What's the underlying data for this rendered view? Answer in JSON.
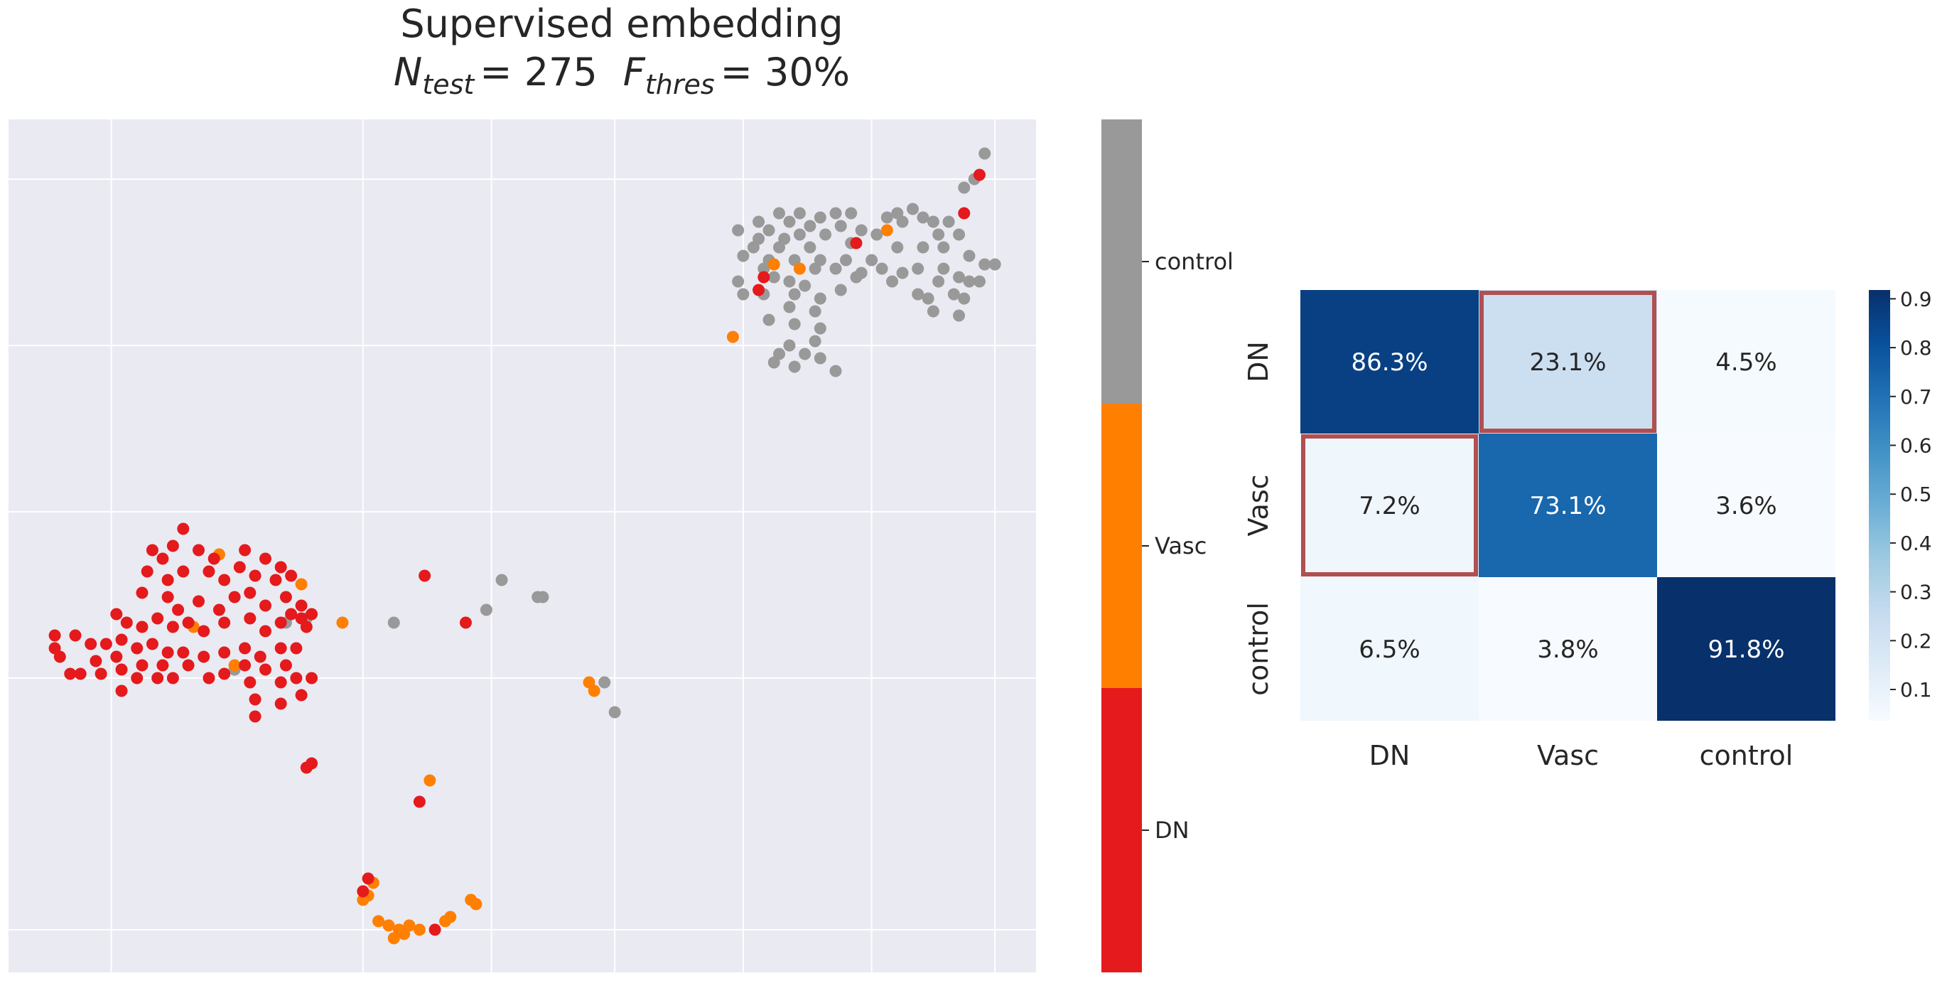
{
  "title": {
    "line1": "Supervised embedding",
    "n_symbol": "N",
    "n_sub": "test",
    "n_value": "= 275",
    "f_symbol": "F",
    "f_sub": "thres",
    "f_value": "= 30%"
  },
  "colors": {
    "DN": "#e41a1c",
    "Vasc": "#ff7f00",
    "control": "#999999",
    "plot_bg": "#eaeaf2",
    "grid": "#ffffff",
    "highlight": "#b05050"
  },
  "chart_data": [
    {
      "type": "scatter",
      "title": "Supervised embedding",
      "xlabel": "",
      "ylabel": "",
      "xlim": [
        0,
        100
      ],
      "ylim": [
        0,
        100
      ],
      "grid": true,
      "legend": "colorbar-right",
      "colorbar": {
        "labels": [
          "control",
          "Vasc",
          "DN"
        ]
      },
      "series": [
        {
          "name": "control",
          "points": [
            [
              95.0,
              96.0
            ],
            [
              94.0,
              93.0
            ],
            [
              93.0,
              92.0
            ],
            [
              75.0,
              89.0
            ],
            [
              77.0,
              89.0
            ],
            [
              79.0,
              88.5
            ],
            [
              80.5,
              89.0
            ],
            [
              82.0,
              89.0
            ],
            [
              88.0,
              89.5
            ],
            [
              86.5,
              89.0
            ],
            [
              85.5,
              88.5
            ],
            [
              89.0,
              88.5
            ],
            [
              73.0,
              88.0
            ],
            [
              76.0,
              88.0
            ],
            [
              78.0,
              87.5
            ],
            [
              81.0,
              87.5
            ],
            [
              87.0,
              88.0
            ],
            [
              90.0,
              88.0
            ],
            [
              91.5,
              88.0
            ],
            [
              71.0,
              87.0
            ],
            [
              74.0,
              87.0
            ],
            [
              83.0,
              87.0
            ],
            [
              84.5,
              86.5
            ],
            [
              90.5,
              86.5
            ],
            [
              92.5,
              86.5
            ],
            [
              73.0,
              86.0
            ],
            [
              75.5,
              86.0
            ],
            [
              77.0,
              86.5
            ],
            [
              79.5,
              86.5
            ],
            [
              72.5,
              85.0
            ],
            [
              75.0,
              85.0
            ],
            [
              78.0,
              85.0
            ],
            [
              82.0,
              85.5
            ],
            [
              86.5,
              85.0
            ],
            [
              89.0,
              85.0
            ],
            [
              91.0,
              85.0
            ],
            [
              71.5,
              84.0
            ],
            [
              74.0,
              83.5
            ],
            [
              76.5,
              83.5
            ],
            [
              79.0,
              83.5
            ],
            [
              81.5,
              83.5
            ],
            [
              84.0,
              83.5
            ],
            [
              93.5,
              84.0
            ],
            [
              95.0,
              83.0
            ],
            [
              96.0,
              83.0
            ],
            [
              73.5,
              82.5
            ],
            [
              78.5,
              82.5
            ],
            [
              80.5,
              82.5
            ],
            [
              83.0,
              82.0
            ],
            [
              85.0,
              82.5
            ],
            [
              87.0,
              82.0
            ],
            [
              88.5,
              82.5
            ],
            [
              91.0,
              82.5
            ],
            [
              92.5,
              81.5
            ],
            [
              71.0,
              81.0
            ],
            [
              74.5,
              81.5
            ],
            [
              76.0,
              81.0
            ],
            [
              77.5,
              80.5
            ],
            [
              82.5,
              81.5
            ],
            [
              86.0,
              81.0
            ],
            [
              90.5,
              81.0
            ],
            [
              93.5,
              81.0
            ],
            [
              94.5,
              81.0
            ],
            [
              71.5,
              79.5
            ],
            [
              73.5,
              79.5
            ],
            [
              76.5,
              79.5
            ],
            [
              79.0,
              79.0
            ],
            [
              81.0,
              80.0
            ],
            [
              88.5,
              79.5
            ],
            [
              89.5,
              79.0
            ],
            [
              92.0,
              79.5
            ],
            [
              93.0,
              79.0
            ],
            [
              76.0,
              78.0
            ],
            [
              90.0,
              77.5
            ],
            [
              92.5,
              77.0
            ],
            [
              74.0,
              76.5
            ],
            [
              76.5,
              76.0
            ],
            [
              78.5,
              77.5
            ],
            [
              79.0,
              75.5
            ],
            [
              78.5,
              74.0
            ],
            [
              76.0,
              73.5
            ],
            [
              75.0,
              72.5
            ],
            [
              77.5,
              72.5
            ],
            [
              79.0,
              72.0
            ],
            [
              74.5,
              71.5
            ],
            [
              76.5,
              71.0
            ],
            [
              80.5,
              70.5
            ],
            [
              27.0,
              41.0
            ],
            [
              29.0,
              41.5
            ],
            [
              22.0,
              35.5
            ],
            [
              48.0,
              46.0
            ],
            [
              46.5,
              42.5
            ],
            [
              51.5,
              44.0
            ],
            [
              52.0,
              44.0
            ],
            [
              58.0,
              34.0
            ],
            [
              59.0,
              30.5
            ],
            [
              37.5,
              41.0
            ]
          ]
        },
        {
          "name": "Vasc",
          "points": [
            [
              85.5,
              87.0
            ],
            [
              74.5,
              83.0
            ],
            [
              77.0,
              82.5
            ],
            [
              70.5,
              74.5
            ],
            [
              20.5,
              49.0
            ],
            [
              28.5,
              45.5
            ],
            [
              32.5,
              41.0
            ],
            [
              18.0,
              40.5
            ],
            [
              22.0,
              36.0
            ],
            [
              56.5,
              34.0
            ],
            [
              57.0,
              33.0
            ],
            [
              41.0,
              22.5
            ],
            [
              35.5,
              10.5
            ],
            [
              35.0,
              9.0
            ],
            [
              34.5,
              8.5
            ],
            [
              36.0,
              6.0
            ],
            [
              37.0,
              5.5
            ],
            [
              37.5,
              4.0
            ],
            [
              38.0,
              5.0
            ],
            [
              39.0,
              5.5
            ],
            [
              40.0,
              5.0
            ],
            [
              42.5,
              6.0
            ],
            [
              43.0,
              6.5
            ],
            [
              45.5,
              8.0
            ],
            [
              45.0,
              8.5
            ],
            [
              38.5,
              4.5
            ]
          ]
        },
        {
          "name": "DN",
          "points": [
            [
              94.5,
              93.5
            ],
            [
              93.0,
              89.0
            ],
            [
              82.5,
              85.5
            ],
            [
              73.5,
              81.5
            ],
            [
              17.0,
              52.0
            ],
            [
              16.0,
              50.0
            ],
            [
              18.5,
              49.5
            ],
            [
              20.0,
              48.5
            ],
            [
              23.0,
              49.5
            ],
            [
              25.0,
              48.5
            ],
            [
              26.5,
              47.5
            ],
            [
              14.0,
              49.5
            ],
            [
              15.0,
              48.5
            ],
            [
              13.5,
              47.0
            ],
            [
              15.5,
              46.0
            ],
            [
              17.0,
              47.0
            ],
            [
              19.5,
              47.0
            ],
            [
              21.0,
              46.0
            ],
            [
              22.5,
              47.5
            ],
            [
              24.0,
              46.5
            ],
            [
              26.0,
              46.0
            ],
            [
              27.5,
              46.5
            ],
            [
              13.0,
              44.5
            ],
            [
              15.5,
              44.0
            ],
            [
              16.5,
              42.5
            ],
            [
              18.5,
              43.5
            ],
            [
              20.5,
              42.5
            ],
            [
              22.0,
              44.0
            ],
            [
              23.5,
              44.5
            ],
            [
              25.0,
              43.0
            ],
            [
              27.0,
              44.0
            ],
            [
              28.5,
              43.0
            ],
            [
              29.5,
              42.0
            ],
            [
              10.5,
              42.0
            ],
            [
              11.5,
              41.0
            ],
            [
              13.0,
              40.5
            ],
            [
              14.5,
              41.5
            ],
            [
              16.0,
              40.5
            ],
            [
              17.5,
              41.0
            ],
            [
              19.0,
              40.0
            ],
            [
              21.0,
              41.0
            ],
            [
              23.5,
              41.5
            ],
            [
              25.0,
              40.0
            ],
            [
              26.5,
              41.0
            ],
            [
              27.5,
              42.0
            ],
            [
              28.5,
              41.5
            ],
            [
              29.0,
              40.5
            ],
            [
              4.5,
              39.5
            ],
            [
              6.5,
              39.5
            ],
            [
              8.0,
              38.5
            ],
            [
              9.5,
              38.5
            ],
            [
              11.0,
              39.0
            ],
            [
              12.5,
              38.0
            ],
            [
              14.0,
              38.5
            ],
            [
              15.5,
              37.5
            ],
            [
              17.0,
              37.5
            ],
            [
              19.0,
              37.0
            ],
            [
              21.0,
              37.5
            ],
            [
              23.0,
              38.0
            ],
            [
              24.5,
              37.0
            ],
            [
              26.5,
              38.0
            ],
            [
              28.0,
              38.0
            ],
            [
              5.0,
              37.0
            ],
            [
              8.5,
              36.5
            ],
            [
              10.5,
              37.0
            ],
            [
              13.0,
              36.0
            ],
            [
              15.0,
              36.0
            ],
            [
              17.5,
              36.0
            ],
            [
              23.0,
              36.0
            ],
            [
              25.0,
              35.5
            ],
            [
              27.0,
              36.0
            ],
            [
              4.5,
              38.0
            ],
            [
              7.0,
              35.0
            ],
            [
              9.0,
              35.0
            ],
            [
              11.0,
              35.5
            ],
            [
              12.5,
              34.5
            ],
            [
              14.5,
              34.5
            ],
            [
              16.0,
              34.5
            ],
            [
              19.5,
              34.5
            ],
            [
              21.0,
              35.0
            ],
            [
              23.5,
              34.0
            ],
            [
              26.5,
              34.0
            ],
            [
              28.0,
              34.5
            ],
            [
              29.5,
              34.5
            ],
            [
              6.0,
              35.0
            ],
            [
              11.0,
              33.0
            ],
            [
              24.0,
              32.0
            ],
            [
              26.5,
              31.5
            ],
            [
              28.5,
              32.5
            ],
            [
              24.0,
              30.0
            ],
            [
              40.5,
              46.5
            ],
            [
              44.5,
              41.0
            ],
            [
              29.0,
              24.0
            ],
            [
              40.0,
              20.0
            ],
            [
              35.0,
              11.0
            ],
            [
              34.5,
              9.5
            ],
            [
              41.5,
              5.0
            ],
            [
              73.0,
              80.0
            ],
            [
              29.5,
              24.5
            ]
          ]
        }
      ]
    },
    {
      "type": "heatmap",
      "title": "",
      "xlabel": "",
      "ylabel": "",
      "x_categories": [
        "DN",
        "Vasc",
        "control"
      ],
      "y_categories": [
        "DN",
        "Vasc",
        "control"
      ],
      "values": [
        [
          0.863,
          0.231,
          0.045
        ],
        [
          0.072,
          0.731,
          0.036
        ],
        [
          0.065,
          0.038,
          0.918
        ]
      ],
      "labels": [
        [
          "86.3%",
          "23.1%",
          "4.5%"
        ],
        [
          "7.2%",
          "73.1%",
          "3.6%"
        ],
        [
          "6.5%",
          "3.8%",
          "91.8%"
        ]
      ],
      "highlighted_cells": [
        [
          0,
          1
        ],
        [
          1,
          0
        ]
      ],
      "colorbar": {
        "range": [
          0.036,
          0.918
        ],
        "ticks": [
          0.1,
          0.2,
          0.3,
          0.4,
          0.5,
          0.6,
          0.7,
          0.8,
          0.9
        ],
        "tick_labels": [
          "0.1",
          "0.2",
          "0.3",
          "0.4",
          "0.5",
          "0.6",
          "0.7",
          "0.8",
          "0.9"
        ],
        "colormap": "Blues"
      }
    }
  ]
}
